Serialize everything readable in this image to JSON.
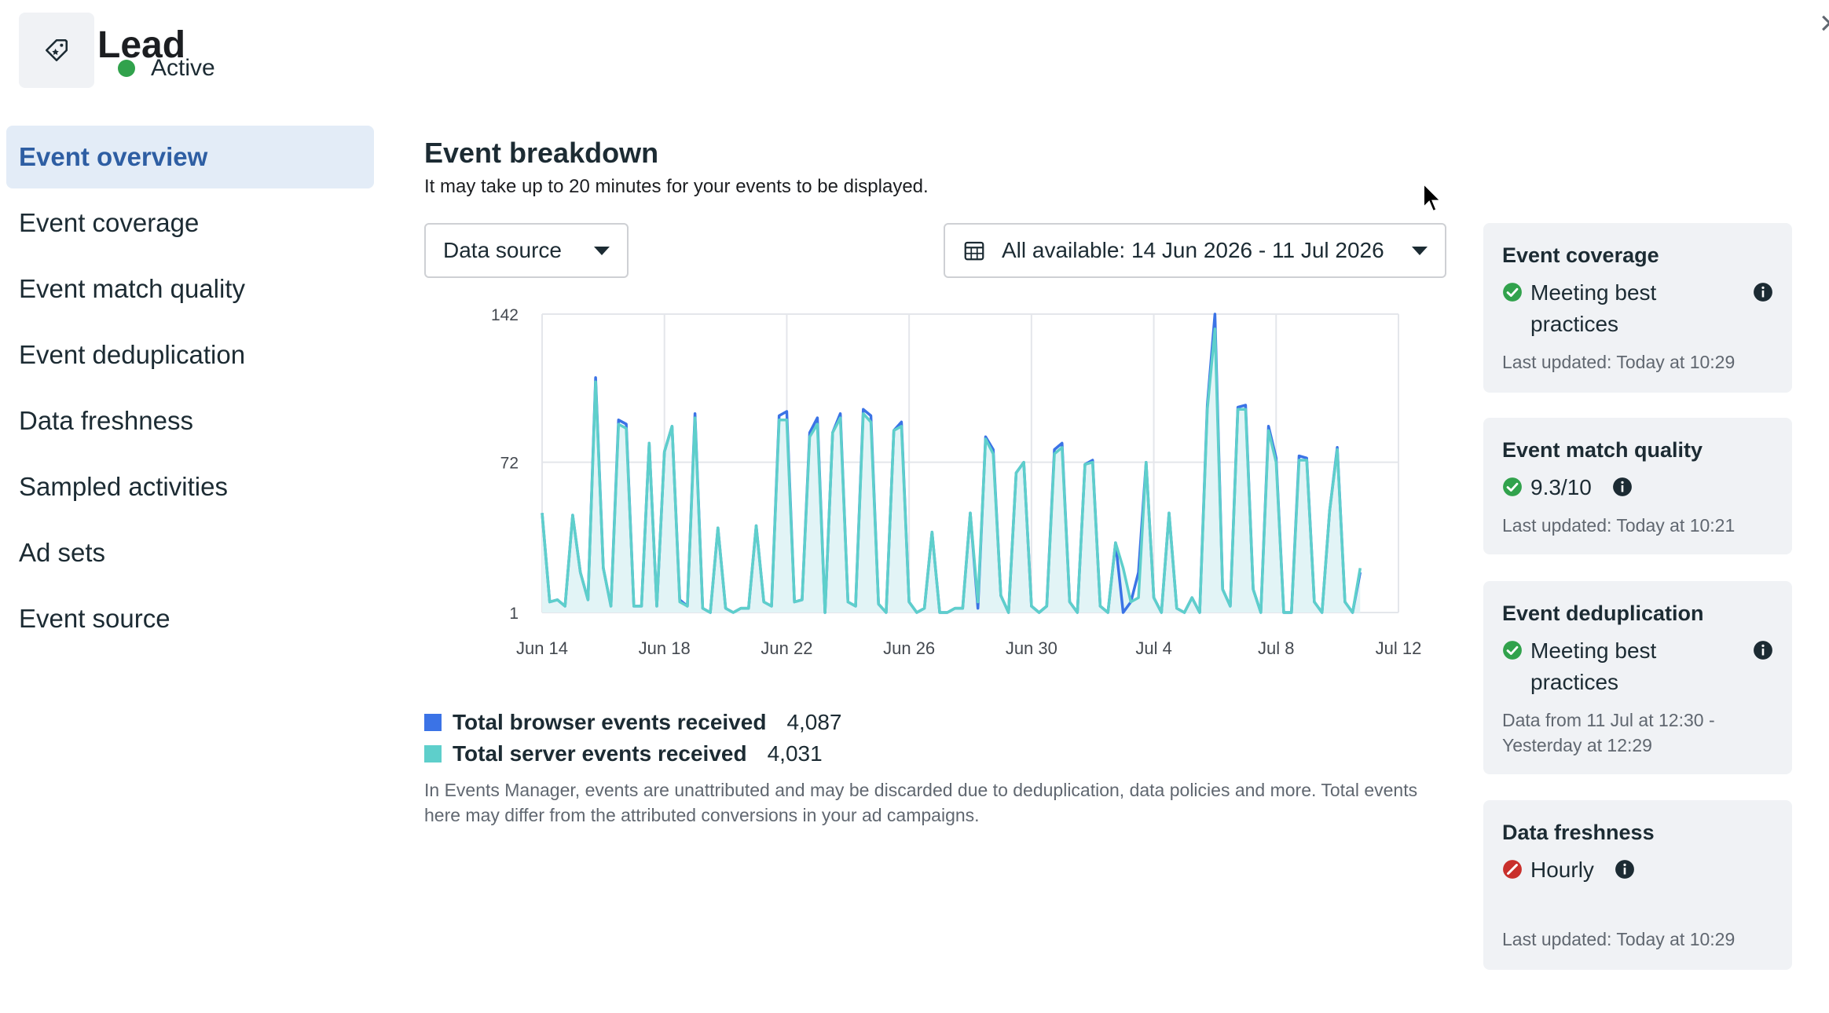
{
  "header": {
    "title": "Lead",
    "status": "Active",
    "icon": "tag-icon",
    "close_icon": "close-icon"
  },
  "sidebar": {
    "items": [
      {
        "label": "Event overview",
        "active": true
      },
      {
        "label": "Event coverage"
      },
      {
        "label": "Event match quality"
      },
      {
        "label": "Event deduplication"
      },
      {
        "label": "Data freshness"
      },
      {
        "label": "Sampled activities"
      },
      {
        "label": "Ad sets"
      },
      {
        "label": "Event source"
      }
    ]
  },
  "breakdown": {
    "title": "Event breakdown",
    "subtitle": "It may take up to 20 minutes for your events to be displayed.",
    "data_source_label": "Data source",
    "date_range_label": "All available: 14 Jun 2026 - 11 Jul 2026",
    "disclaimer": "In Events Manager, events are unattributed and may be discarded due to deduplication, data policies and more. Total events here may differ from the attributed conversions in your ad campaigns."
  },
  "legend": {
    "items": [
      {
        "label": "Total browser events received",
        "value": "4,087",
        "color": "#3b73e6"
      },
      {
        "label": "Total server events received",
        "value": "4,031",
        "color": "#5ecfcb"
      }
    ]
  },
  "colors": {
    "browser": "#3b73e6",
    "server": "#5ecfcb",
    "area": "#e2f4f6",
    "active_nav_bg": "#e3ecf7",
    "active_nav_text": "#2e5ea3",
    "ok": "#31a24c",
    "error": "#c9302c"
  },
  "cards": [
    {
      "title": "Event coverage",
      "status": "Meeting best practices",
      "status_icon": "check-circle-icon",
      "info": true,
      "updated": "Last updated: Today at 10:29"
    },
    {
      "title": "Event match quality",
      "status": "9.3/10",
      "status_icon": "check-circle-icon",
      "info": true,
      "updated": "Last updated: Today at 10:21"
    },
    {
      "title": "Event deduplication",
      "status": "Meeting best practices",
      "status_icon": "check-circle-icon",
      "info": true,
      "updated": "Data from 11 Jul at 12:30 - Yesterday at 12:29"
    },
    {
      "title": "Data freshness",
      "status": "Hourly",
      "status_icon": "error-circle-icon",
      "info": true,
      "updated": "Last updated: Today at 10:29"
    }
  ],
  "chart_data": {
    "type": "line",
    "title": "",
    "xlabel": "",
    "ylabel": "",
    "x_ticks": [
      "Jun 14",
      "Jun 18",
      "Jun 22",
      "Jun 26",
      "Jun 30",
      "Jul 4",
      "Jul 8",
      "Jul 12"
    ],
    "y_ticks": [
      "142",
      "72",
      "1"
    ],
    "ylim": [
      1,
      142
    ],
    "grid": true,
    "x_start": "2026-06-14",
    "points_per_day": 4,
    "series": [
      {
        "name": "Total browser events received",
        "values": [
          48,
          6,
          7,
          4,
          47,
          20,
          7,
          112,
          22,
          4,
          92,
          90,
          4,
          4,
          81,
          4,
          77,
          89,
          7,
          4,
          95,
          3,
          1,
          41,
          3,
          1,
          3,
          3,
          42,
          6,
          4,
          94,
          96,
          6,
          7,
          86,
          93,
          1,
          86,
          95,
          6,
          4,
          97,
          94,
          5,
          1,
          87,
          91,
          6,
          1,
          3,
          39,
          1,
          1,
          3,
          3,
          48,
          3,
          84,
          78,
          9,
          1,
          67,
          72,
          4,
          1,
          4,
          78,
          81,
          6,
          1,
          71,
          73,
          4,
          1,
          34,
          1,
          6,
          20,
          72,
          8,
          1,
          48,
          3,
          1,
          8,
          1,
          99,
          142,
          12,
          4,
          98,
          99,
          12,
          1,
          89,
          74,
          1,
          1,
          75,
          74,
          6,
          1,
          49,
          79,
          6,
          1,
          20
        ]
      },
      {
        "name": "Total server events received",
        "values": [
          48,
          6,
          7,
          4,
          47,
          20,
          7,
          110,
          22,
          4,
          90,
          88,
          4,
          4,
          81,
          4,
          77,
          89,
          6,
          4,
          93,
          3,
          1,
          41,
          3,
          1,
          3,
          3,
          42,
          6,
          4,
          92,
          92,
          6,
          7,
          84,
          90,
          1,
          86,
          93,
          6,
          4,
          95,
          91,
          5,
          1,
          87,
          89,
          6,
          1,
          3,
          39,
          1,
          1,
          3,
          3,
          48,
          6,
          83,
          76,
          9,
          1,
          67,
          72,
          4,
          1,
          4,
          76,
          79,
          6,
          1,
          71,
          72,
          4,
          1,
          34,
          22,
          6,
          8,
          72,
          8,
          1,
          48,
          3,
          1,
          8,
          1,
          97,
          135,
          12,
          4,
          97,
          97,
          12,
          1,
          87,
          72,
          1,
          1,
          73,
          73,
          6,
          1,
          49,
          78,
          6,
          1,
          22
        ]
      }
    ]
  }
}
